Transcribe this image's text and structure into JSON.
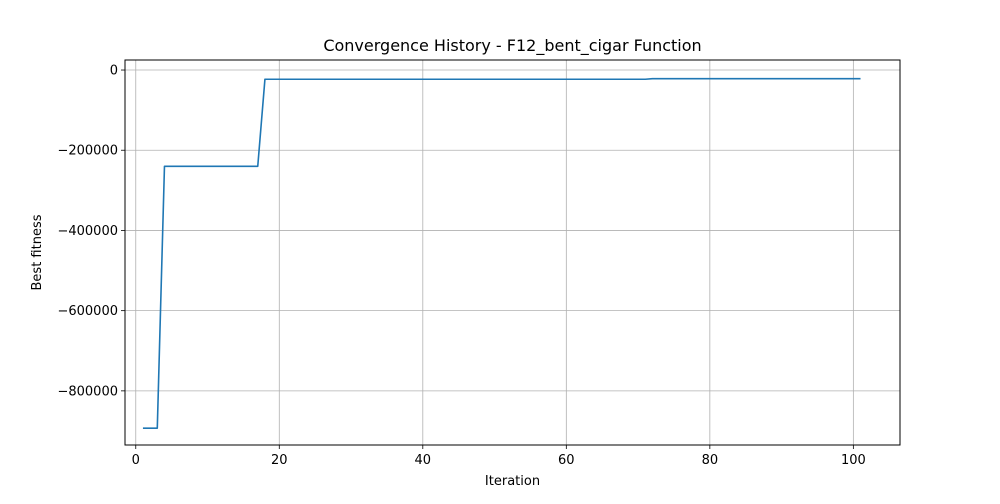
{
  "chart_data": {
    "type": "line",
    "title": "Convergence History - F12_bent_cigar Function",
    "xlabel": "Iteration",
    "ylabel": "Best fitness",
    "xlim": [
      -1.5,
      106.5
    ],
    "ylim": [
      -935000,
      25000
    ],
    "grid": true,
    "x_ticks": [
      0,
      20,
      40,
      60,
      80,
      100
    ],
    "x_tick_labels": [
      "0",
      "20",
      "40",
      "60",
      "80",
      "100"
    ],
    "y_ticks": [
      0,
      -200000,
      -400000,
      -600000,
      -800000
    ],
    "y_tick_labels": [
      "0",
      "−200000",
      "−400000",
      "−600000",
      "−800000"
    ],
    "series": [
      {
        "color": "#1f77b4",
        "x": [
          1,
          2,
          3,
          4,
          5,
          6,
          7,
          8,
          9,
          10,
          11,
          12,
          13,
          14,
          15,
          16,
          17,
          18,
          19,
          20,
          21,
          22,
          23,
          24,
          25,
          26,
          27,
          28,
          29,
          30,
          31,
          32,
          33,
          34,
          35,
          36,
          37,
          38,
          39,
          40,
          41,
          42,
          43,
          44,
          45,
          46,
          47,
          48,
          49,
          50,
          51,
          52,
          53,
          54,
          55,
          56,
          57,
          58,
          59,
          60,
          61,
          62,
          63,
          64,
          65,
          66,
          67,
          68,
          69,
          70,
          71,
          72,
          73,
          74,
          75,
          76,
          77,
          78,
          79,
          80,
          81,
          82,
          83,
          84,
          85,
          86,
          87,
          88,
          89,
          90,
          91,
          92,
          93,
          94,
          95,
          96,
          97,
          98,
          99,
          100,
          101
        ],
        "y": [
          -893000,
          -893000,
          -893000,
          -240000,
          -240000,
          -240000,
          -240000,
          -240000,
          -240000,
          -240000,
          -240000,
          -240000,
          -240000,
          -240000,
          -240000,
          -240000,
          -240000,
          -23000,
          -23000,
          -23000,
          -23000,
          -23000,
          -23000,
          -23000,
          -23000,
          -23000,
          -23000,
          -23000,
          -23000,
          -23000,
          -23000,
          -23000,
          -23000,
          -23000,
          -23000,
          -23000,
          -23000,
          -23000,
          -23000,
          -23000,
          -23000,
          -23000,
          -23000,
          -23000,
          -23000,
          -23000,
          -23000,
          -23000,
          -23000,
          -23000,
          -23000,
          -23000,
          -23000,
          -23000,
          -23000,
          -23000,
          -23000,
          -23000,
          -23000,
          -23000,
          -23000,
          -23000,
          -23000,
          -23000,
          -23000,
          -23000,
          -23000,
          -23000,
          -23000,
          -23000,
          -23000,
          -21500,
          -21500,
          -21500,
          -21500,
          -21500,
          -21500,
          -21500,
          -21500,
          -21500,
          -21500,
          -21500,
          -21500,
          -21500,
          -21500,
          -21500,
          -21500,
          -21500,
          -21500,
          -21500,
          -21500,
          -21500,
          -21500,
          -21500,
          -21500,
          -21500,
          -21500,
          -21500,
          -21500,
          -21500,
          -21500
        ]
      }
    ]
  }
}
